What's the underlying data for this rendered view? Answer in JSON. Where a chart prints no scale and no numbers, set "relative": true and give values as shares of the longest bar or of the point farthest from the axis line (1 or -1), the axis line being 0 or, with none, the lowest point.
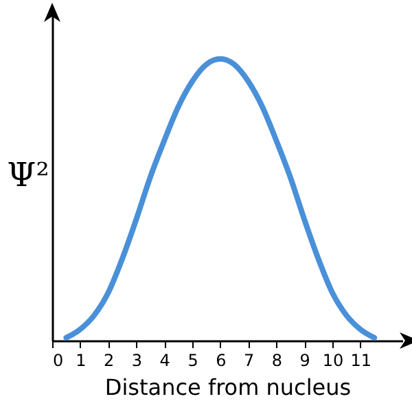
{
  "chart_data": {
    "type": "line",
    "relative": true,
    "xlabel": "Distance from nucleus",
    "ylabel": "Ψ²",
    "x": [
      0.5,
      1,
      1.5,
      2,
      2.5,
      3,
      3.5,
      4,
      4.5,
      5,
      5.5,
      6,
      6.5,
      7,
      7.5,
      8,
      8.5,
      9,
      9.5,
      10,
      10.5,
      11,
      11.5
    ],
    "xlim": [
      0,
      12.5
    ],
    "xticks": [
      {
        "value": 0,
        "label": "0"
      },
      1,
      2,
      3,
      4,
      5,
      6,
      7,
      8,
      9,
      10,
      11
    ],
    "series": [
      {
        "color": "#4a90d9",
        "values": [
          0.01,
          0.04,
          0.09,
          0.17,
          0.29,
          0.43,
          0.58,
          0.71,
          0.83,
          0.92,
          0.98,
          1,
          0.98,
          0.92,
          0.83,
          0.71,
          0.58,
          0.43,
          0.29,
          0.17,
          0.09,
          0.04,
          0.01
        ]
      }
    ],
    "grid": false,
    "marker": "none",
    "line_style": "solid"
  }
}
